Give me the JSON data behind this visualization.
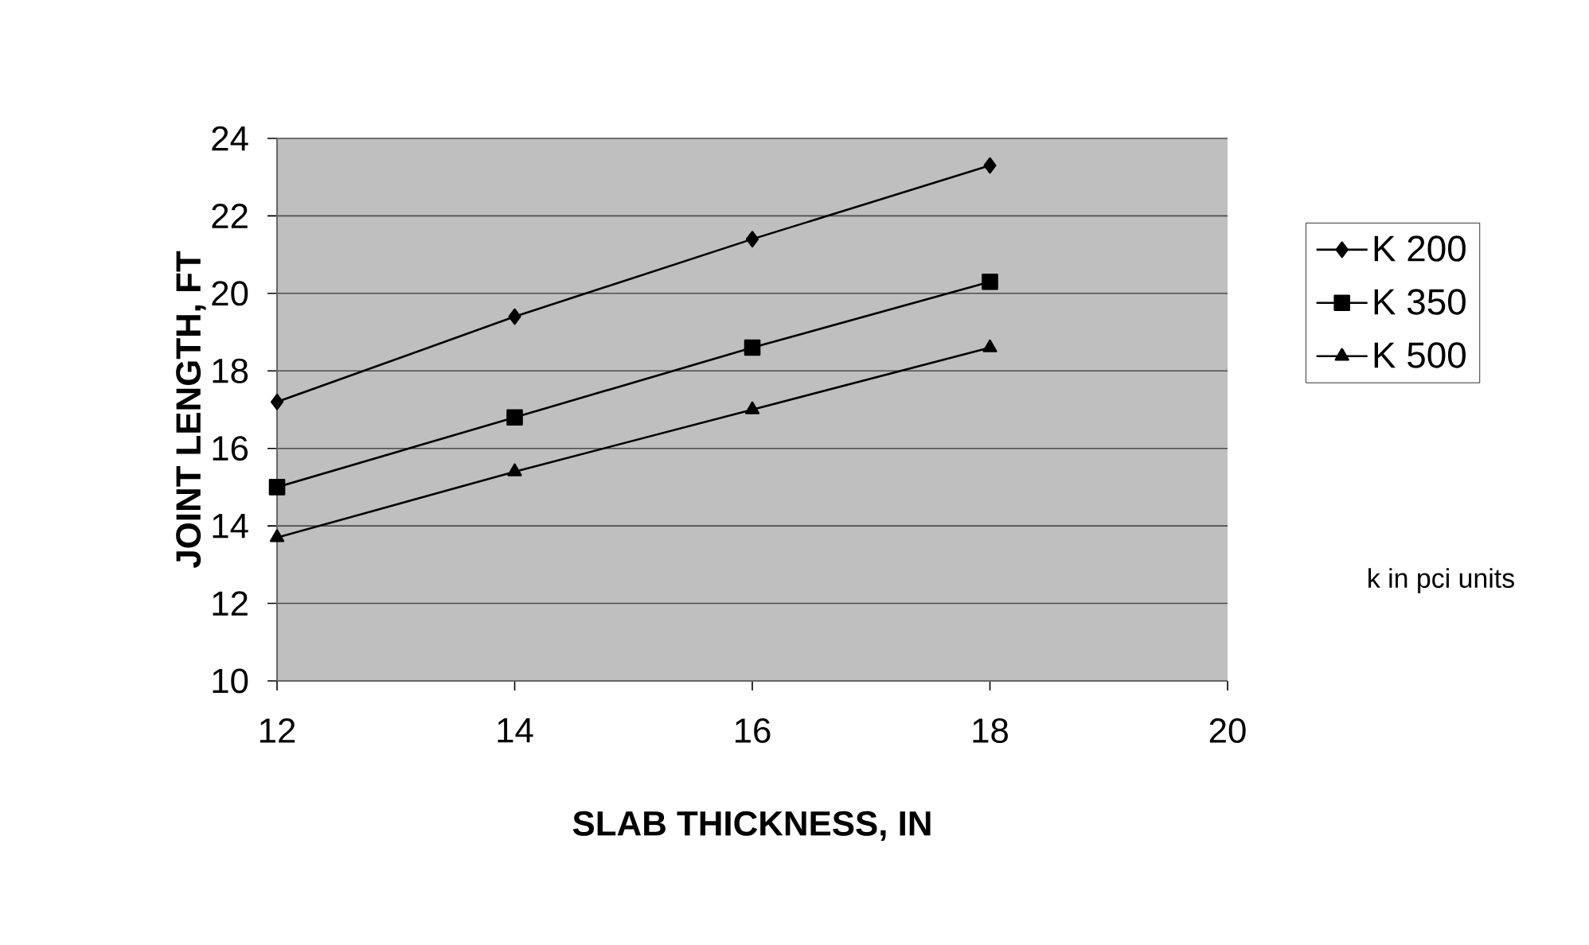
{
  "chart_data": {
    "type": "line",
    "xlabel": "SLAB THICKNESS, IN",
    "ylabel": "JOINT LENGTH, FT",
    "x": [
      12,
      14,
      16,
      18
    ],
    "series": [
      {
        "name": "K 200",
        "color": "#000000",
        "marker": "diamond",
        "values": [
          17.2,
          19.4,
          21.4,
          23.3
        ]
      },
      {
        "name": "K 350",
        "color": "#000000",
        "marker": "square",
        "values": [
          15.0,
          16.8,
          18.6,
          20.3
        ]
      },
      {
        "name": "K 500",
        "color": "#000000",
        "marker": "triangle",
        "values": [
          13.7,
          15.4,
          17.0,
          18.6
        ]
      }
    ],
    "xlim": [
      12,
      20
    ],
    "xticks": [
      12,
      14,
      16,
      18,
      20
    ],
    "ylim": [
      10,
      24
    ],
    "yticks": [
      10,
      12,
      14,
      16,
      18,
      20,
      22,
      24
    ],
    "grid": "y",
    "legend": "right",
    "line_style": "solid",
    "annotations": [
      "k in pci units"
    ]
  }
}
